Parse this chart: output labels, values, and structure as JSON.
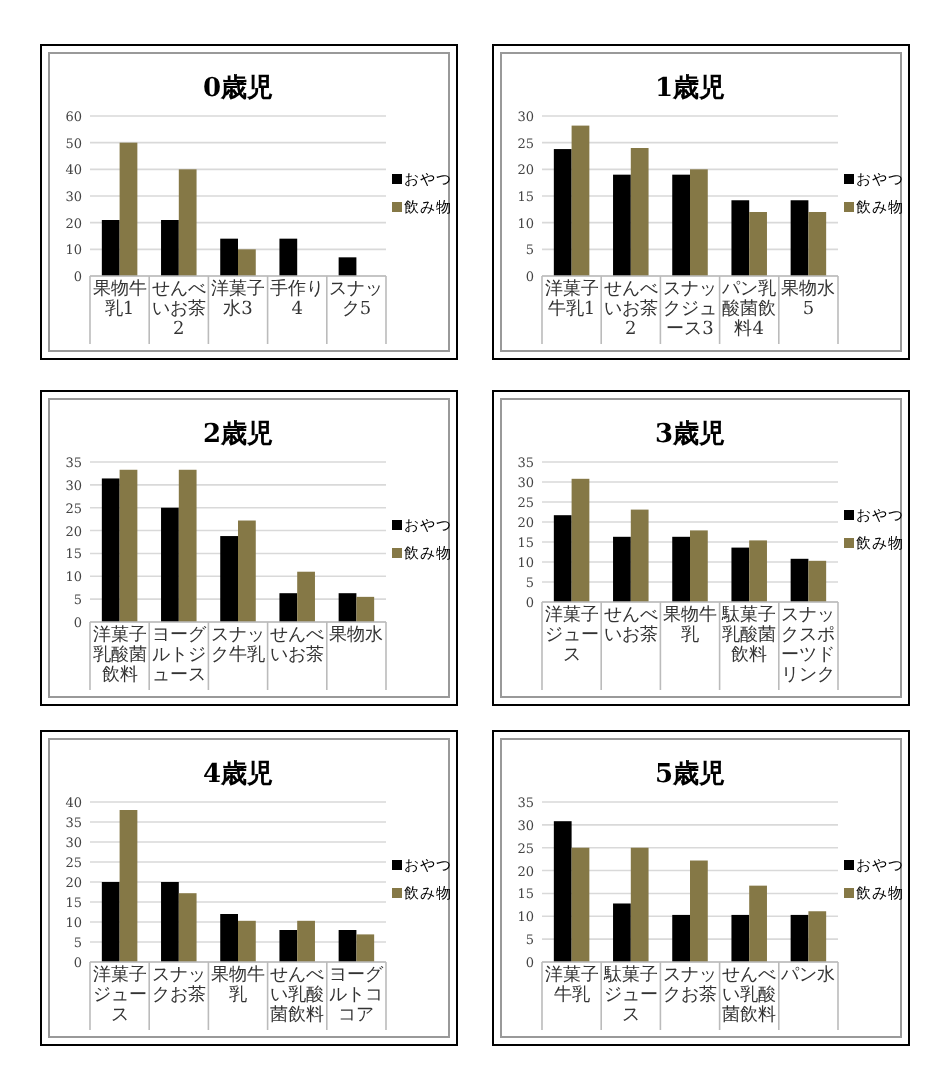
{
  "chart_data": [
    {
      "type": "bar",
      "title": "0歳児",
      "categories": [
        "果物牛乳1",
        "せんべいお茶2",
        "洋菓子水3",
        "手作り4",
        "スナック5"
      ],
      "ylim": [
        0,
        60
      ],
      "yticks": [
        0,
        10,
        20,
        30,
        40,
        50,
        60
      ],
      "grid": "y",
      "legend": "right",
      "series": [
        {
          "name": "おやつ",
          "color": "#000000",
          "values": [
            21,
            21,
            14,
            14,
            7
          ]
        },
        {
          "name": "飲み物",
          "color": "#857846",
          "values": [
            50,
            40,
            10,
            null,
            null
          ]
        }
      ]
    },
    {
      "type": "bar",
      "title": "1歳児",
      "categories": [
        "洋菓子牛乳1",
        "せんべいお茶2",
        "スナックジュース3",
        "パン乳酸菌飲料4",
        "果物水5"
      ],
      "ylim": [
        0,
        30
      ],
      "yticks": [
        0,
        5,
        10,
        15,
        20,
        25,
        30
      ],
      "grid": "y",
      "legend": "right",
      "series": [
        {
          "name": "おやつ",
          "color": "#000000",
          "values": [
            23.8,
            19,
            19,
            14.2,
            14.2
          ]
        },
        {
          "name": "飲み物",
          "color": "#857846",
          "values": [
            28.2,
            24,
            20,
            12,
            12
          ]
        }
      ]
    },
    {
      "type": "bar",
      "title": "2歳児",
      "categories": [
        "洋菓子乳酸菌飲料",
        "ヨーグルトジュース",
        "スナック牛乳",
        "せんべいお茶",
        "果物水"
      ],
      "ylim": [
        0,
        35
      ],
      "yticks": [
        0,
        5,
        10,
        15,
        20,
        25,
        30,
        35
      ],
      "grid": "y",
      "legend": "right",
      "series": [
        {
          "name": "おやつ",
          "color": "#000000",
          "values": [
            31.4,
            25,
            18.8,
            6.3,
            6.3
          ]
        },
        {
          "name": "飲み物",
          "color": "#857846",
          "values": [
            33.3,
            33.3,
            22.2,
            11,
            5.5
          ]
        }
      ]
    },
    {
      "type": "bar",
      "title": "3歳児",
      "categories": [
        "洋菓子ジュース",
        "せんべいお茶",
        "果物牛乳",
        "駄菓子乳酸菌飲料",
        "スナックスポーツドリンク"
      ],
      "ylim": [
        0,
        35
      ],
      "yticks": [
        0,
        5,
        10,
        15,
        20,
        25,
        30,
        35
      ],
      "grid": "y",
      "legend": "right",
      "series": [
        {
          "name": "おやつ",
          "color": "#000000",
          "values": [
            21.7,
            16.3,
            16.3,
            13.6,
            10.8
          ]
        },
        {
          "name": "飲み物",
          "color": "#857846",
          "values": [
            30.8,
            23.1,
            17.9,
            15.4,
            10.3
          ]
        }
      ]
    },
    {
      "type": "bar",
      "title": "4歳児",
      "categories": [
        "洋菓子ジュース",
        "スナックお茶",
        "果物牛乳",
        "せんべい乳酸菌飲料",
        "ヨーグルトココア"
      ],
      "ylim": [
        0,
        40
      ],
      "yticks": [
        0,
        5,
        10,
        15,
        20,
        25,
        30,
        35,
        40
      ],
      "grid": "y",
      "legend": "right",
      "series": [
        {
          "name": "おやつ",
          "color": "#000000",
          "values": [
            20,
            20,
            12,
            8,
            8
          ]
        },
        {
          "name": "飲み物",
          "color": "#857846",
          "values": [
            38,
            17.2,
            10.3,
            10.3,
            6.9
          ]
        }
      ]
    },
    {
      "type": "bar",
      "title": "5歳児",
      "categories": [
        "洋菓子牛乳",
        "駄菓子ジュース",
        "スナックお茶",
        "せんべい乳酸菌飲料",
        "パン水"
      ],
      "ylim": [
        0,
        35
      ],
      "yticks": [
        0,
        5,
        10,
        15,
        20,
        25,
        30,
        35
      ],
      "grid": "y",
      "legend": "right",
      "series": [
        {
          "name": "おやつ",
          "color": "#000000",
          "values": [
            30.8,
            12.8,
            10.3,
            10.3,
            10.3
          ]
        },
        {
          "name": "飲み物",
          "color": "#857846",
          "values": [
            25,
            25,
            22.2,
            16.7,
            11.1
          ]
        }
      ]
    }
  ]
}
